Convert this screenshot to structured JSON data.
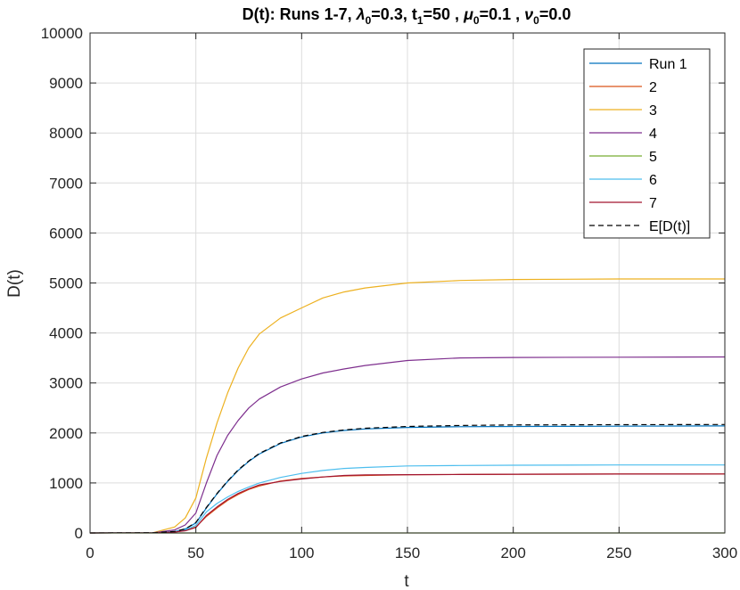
{
  "chart_data": {
    "type": "line",
    "title_parts": {
      "prefix": "D(t): Runs 1-7, ",
      "lambda_sym": "λ",
      "sub0": "0",
      "lambda_val": "=0.3,  t",
      "sub1": "1",
      "t1_val": "=50 , ",
      "mu_sym": "μ",
      "sub0b": "0",
      "mu_val": "=0.1 , ",
      "nu_sym": "ν",
      "sub0c": "0",
      "nu_val": "=0.0"
    },
    "xlabel": "t",
    "ylabel": "D(t)",
    "xlim": [
      0,
      300
    ],
    "ylim": [
      0,
      10000
    ],
    "xticks": [
      0,
      50,
      100,
      150,
      200,
      250,
      300
    ],
    "yticks": [
      0,
      1000,
      2000,
      3000,
      4000,
      5000,
      6000,
      7000,
      8000,
      9000,
      10000
    ],
    "grid": true,
    "legend_position": "top-right",
    "x": [
      0,
      30,
      40,
      45,
      50,
      55,
      60,
      65,
      70,
      75,
      80,
      90,
      100,
      110,
      120,
      130,
      150,
      175,
      200,
      250,
      300
    ],
    "series": [
      {
        "name": "Run 1",
        "color": "#0072BD",
        "dash": false,
        "values": [
          0,
          5,
          30,
          80,
          200,
          500,
          780,
          1030,
          1250,
          1430,
          1580,
          1790,
          1920,
          2000,
          2050,
          2080,
          2110,
          2125,
          2130,
          2135,
          2140
        ]
      },
      {
        "name": "2",
        "color": "#D95319",
        "dash": false,
        "values": [
          0,
          3,
          20,
          50,
          120,
          330,
          500,
          650,
          770,
          870,
          940,
          1040,
          1090,
          1120,
          1140,
          1150,
          1165,
          1170,
          1175,
          1178,
          1180
        ]
      },
      {
        "name": "3",
        "color": "#EDB120",
        "dash": false,
        "values": [
          0,
          8,
          120,
          300,
          700,
          1500,
          2200,
          2800,
          3300,
          3700,
          3980,
          4300,
          4500,
          4700,
          4820,
          4900,
          5000,
          5050,
          5070,
          5080,
          5080
        ]
      },
      {
        "name": "4",
        "color": "#7E2F8E",
        "dash": false,
        "values": [
          0,
          6,
          60,
          160,
          400,
          1000,
          1550,
          1950,
          2250,
          2500,
          2680,
          2920,
          3080,
          3200,
          3280,
          3350,
          3450,
          3500,
          3510,
          3515,
          3520
        ]
      },
      {
        "name": "5",
        "color": "#77AC30",
        "dash": false,
        "values": [
          0,
          0,
          0,
          0,
          0,
          0,
          0,
          0,
          0,
          0,
          0,
          0,
          0,
          0,
          0,
          0,
          0,
          0,
          0,
          0,
          0
        ]
      },
      {
        "name": "6",
        "color": "#4DBEEE",
        "dash": false,
        "values": [
          0,
          4,
          25,
          60,
          150,
          420,
          590,
          720,
          830,
          920,
          1000,
          1110,
          1190,
          1250,
          1290,
          1310,
          1340,
          1350,
          1355,
          1360,
          1360
        ]
      },
      {
        "name": "7",
        "color": "#A2142F",
        "dash": false,
        "values": [
          0,
          3,
          20,
          45,
          110,
          350,
          520,
          670,
          790,
          880,
          960,
          1030,
          1080,
          1120,
          1150,
          1160,
          1165,
          1170,
          1175,
          1178,
          1180
        ]
      },
      {
        "name": "E[D(t)]",
        "color": "#000000",
        "dash": true,
        "values": [
          0,
          5,
          30,
          80,
          210,
          510,
          790,
          1040,
          1260,
          1440,
          1590,
          1800,
          1930,
          2010,
          2060,
          2095,
          2130,
          2150,
          2160,
          2165,
          2170
        ]
      }
    ]
  }
}
